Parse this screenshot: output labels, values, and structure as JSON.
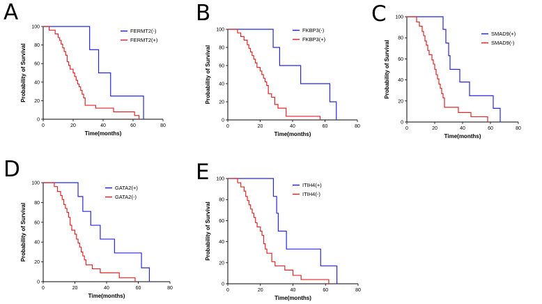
{
  "chart_data": [
    {
      "type": "line",
      "subtype": "kaplan-meier",
      "panel": "A",
      "xlabel": "Time(months)",
      "ylabel": "Probability of Survival",
      "xlim": [
        0,
        80
      ],
      "ylim": [
        0,
        100
      ],
      "xticks": [
        0,
        20,
        40,
        60,
        80
      ],
      "yticks": [
        0,
        20,
        40,
        60,
        80,
        100
      ],
      "legend_position": "top-right",
      "series": [
        {
          "name": "FERMT2(-)",
          "color": "#2626e0",
          "x": [
            0,
            31,
            37,
            45,
            67
          ],
          "y": [
            100,
            75,
            50,
            25,
            0
          ]
        },
        {
          "name": "FERMT2(+)",
          "color": "#e02626",
          "x": [
            0,
            4,
            8,
            10,
            11,
            12,
            13,
            14,
            15,
            16,
            17,
            18,
            20,
            21,
            22,
            23,
            24,
            25,
            26,
            27,
            28,
            35,
            47,
            61,
            64
          ],
          "y": [
            100,
            96,
            92,
            88,
            85,
            81,
            77,
            73,
            69,
            62,
            58,
            54,
            50,
            46,
            42,
            38,
            35,
            31,
            27,
            23,
            15,
            12,
            8,
            4,
            0
          ]
        }
      ]
    },
    {
      "type": "line",
      "subtype": "kaplan-meier",
      "panel": "B",
      "xlabel": "Time(months)",
      "ylabel": "Probability of Survival",
      "xlim": [
        0,
        80
      ],
      "ylim": [
        0,
        100
      ],
      "xticks": [
        0,
        20,
        40,
        60,
        80
      ],
      "yticks": [
        0,
        20,
        40,
        60,
        80,
        100
      ],
      "legend_position": "top-right",
      "series": [
        {
          "name": "FKBP3(-)",
          "color": "#2626e0",
          "x": [
            0,
            28,
            32,
            45,
            63,
            67
          ],
          "y": [
            100,
            80,
            60,
            40,
            20,
            0
          ]
        },
        {
          "name": "FKBP3(+)",
          "color": "#e02626",
          "x": [
            0,
            6,
            8,
            10,
            12,
            13,
            14,
            15,
            16,
            17,
            18,
            20,
            21,
            22,
            23,
            24,
            25,
            27,
            29,
            31,
            36,
            57
          ],
          "y": [
            100,
            96,
            92,
            88,
            83,
            79,
            75,
            71,
            67,
            63,
            58,
            54,
            50,
            46,
            42,
            38,
            29,
            25,
            17,
            13,
            4,
            0
          ]
        }
      ]
    },
    {
      "type": "line",
      "subtype": "kaplan-meier",
      "panel": "C",
      "xlabel": "Time(months)",
      "ylabel": "Probability of Survival",
      "xlim": [
        0,
        80
      ],
      "ylim": [
        0,
        100
      ],
      "xticks": [
        0,
        20,
        40,
        60,
        80
      ],
      "yticks": [
        0,
        20,
        40,
        60,
        80,
        100
      ],
      "legend_position": "top-right",
      "series": [
        {
          "name": "SMAD9(+)",
          "color": "#2626e0",
          "x": [
            0,
            26,
            28,
            30,
            31,
            33,
            38,
            45,
            62,
            67
          ],
          "y": [
            100,
            88,
            75,
            63,
            50,
            50,
            38,
            25,
            13,
            0
          ]
        },
        {
          "name": "SMAD9(-)",
          "color": "#e02626",
          "x": [
            0,
            7,
            9,
            11,
            12,
            13,
            14,
            15,
            16,
            18,
            19,
            20,
            21,
            22,
            23,
            24,
            25,
            26,
            27,
            32,
            37,
            46,
            58
          ],
          "y": [
            100,
            95,
            91,
            86,
            82,
            77,
            73,
            68,
            64,
            59,
            55,
            50,
            45,
            41,
            36,
            32,
            27,
            23,
            14,
            14,
            9,
            5,
            0
          ]
        }
      ]
    },
    {
      "type": "line",
      "subtype": "kaplan-meier",
      "panel": "D",
      "xlabel": "Time(months)",
      "ylabel": "Probability of Survival",
      "xlim": [
        0,
        80
      ],
      "ylim": [
        0,
        100
      ],
      "xticks": [
        0,
        20,
        40,
        60,
        80
      ],
      "yticks": [
        0,
        20,
        40,
        60,
        80,
        100
      ],
      "legend_position": "top-right",
      "series": [
        {
          "name": "GATA2(+)",
          "color": "#2626e0",
          "x": [
            0,
            22,
            25,
            30,
            36,
            45,
            62,
            67
          ],
          "y": [
            100,
            86,
            71,
            57,
            43,
            29,
            14,
            0
          ]
        },
        {
          "name": "GATA2(-)",
          "color": "#e02626",
          "x": [
            0,
            7,
            9,
            11,
            12,
            13,
            14,
            15,
            16,
            17,
            18,
            20,
            21,
            22,
            23,
            24,
            25,
            26,
            27,
            31,
            36,
            48,
            58
          ],
          "y": [
            100,
            96,
            91,
            87,
            83,
            78,
            74,
            70,
            65,
            57,
            52,
            48,
            43,
            39,
            35,
            30,
            26,
            22,
            17,
            13,
            9,
            4,
            0
          ]
        }
      ]
    },
    {
      "type": "line",
      "subtype": "kaplan-meier",
      "panel": "E",
      "xlabel": "Time(months)",
      "ylabel": "Probability of Survival",
      "xlim": [
        0,
        80
      ],
      "ylim": [
        0,
        100
      ],
      "xticks": [
        0,
        20,
        40,
        60,
        80
      ],
      "yticks": [
        0,
        20,
        40,
        60,
        80,
        100
      ],
      "legend_position": "top-right",
      "series": [
        {
          "name": "ITIH4(+)",
          "color": "#2626e0",
          "x": [
            0,
            28,
            30,
            31,
            36,
            57,
            67
          ],
          "y": [
            100,
            83,
            67,
            50,
            33,
            17,
            0
          ]
        },
        {
          "name": "ITIH4(-)",
          "color": "#e02626",
          "x": [
            0,
            6,
            8,
            10,
            11,
            12,
            13,
            14,
            15,
            16,
            17,
            18,
            20,
            21,
            22,
            23,
            24,
            27,
            29,
            35,
            40,
            45,
            62
          ],
          "y": [
            100,
            96,
            92,
            88,
            83,
            79,
            75,
            71,
            67,
            63,
            58,
            54,
            50,
            46,
            38,
            33,
            29,
            21,
            17,
            13,
            8,
            4,
            0
          ]
        }
      ]
    }
  ]
}
